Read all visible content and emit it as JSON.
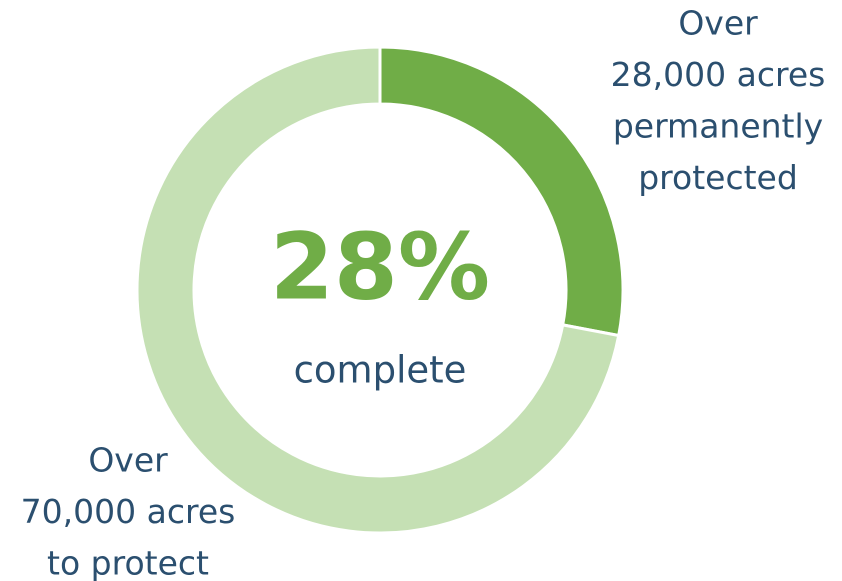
{
  "chart_data": {
    "type": "donut",
    "labels": [
      [
        "Over",
        "28,000 acres",
        "permanently",
        "protected"
      ],
      [
        "Over",
        "70,000 acres",
        "to protect"
      ]
    ],
    "values": [
      28,
      72
    ],
    "value_labels": [
      "28%",
      null
    ],
    "center_subtitle": "complete",
    "colors": [
      "#70ad47",
      "#c5e0b4"
    ]
  }
}
